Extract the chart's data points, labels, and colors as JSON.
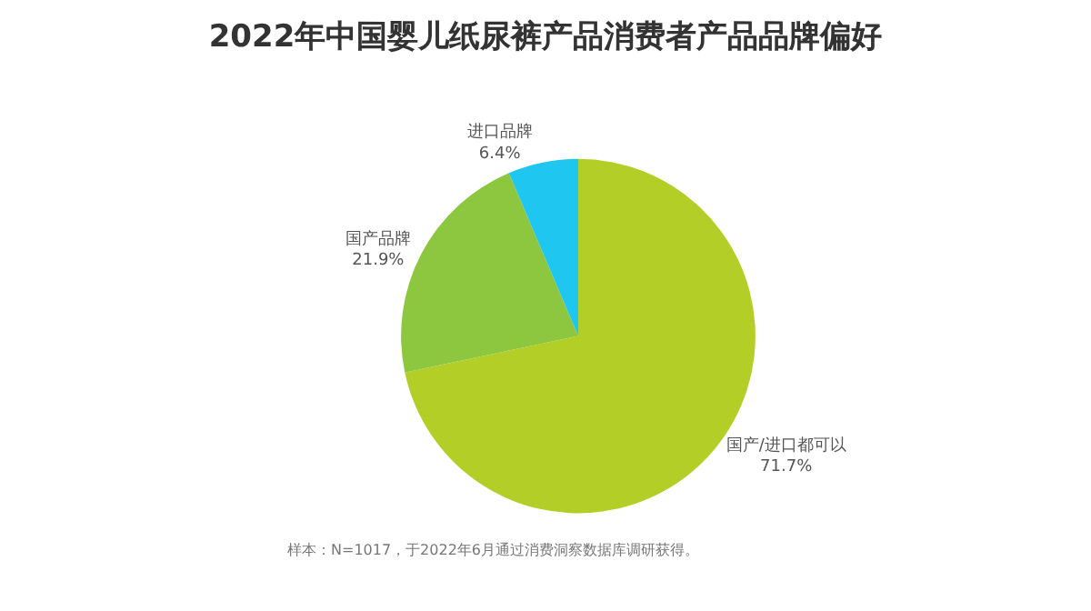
{
  "chart_data": {
    "type": "pie",
    "title": "2022年中国婴儿纸尿裤产品消费者产品品牌偏好",
    "categories": [
      "国产/进口都可以",
      "国产品牌",
      "进口品牌"
    ],
    "values": [
      71.7,
      21.9,
      6.4
    ],
    "colors": [
      "#b3cf27",
      "#8dc63f",
      "#1fc6ef"
    ],
    "value_labels": [
      "71.7%",
      "21.9%",
      "6.4%"
    ],
    "annotations": [
      "样本：N=1017，于2022年6月通过消费洞察数据库调研获得。"
    ]
  }
}
